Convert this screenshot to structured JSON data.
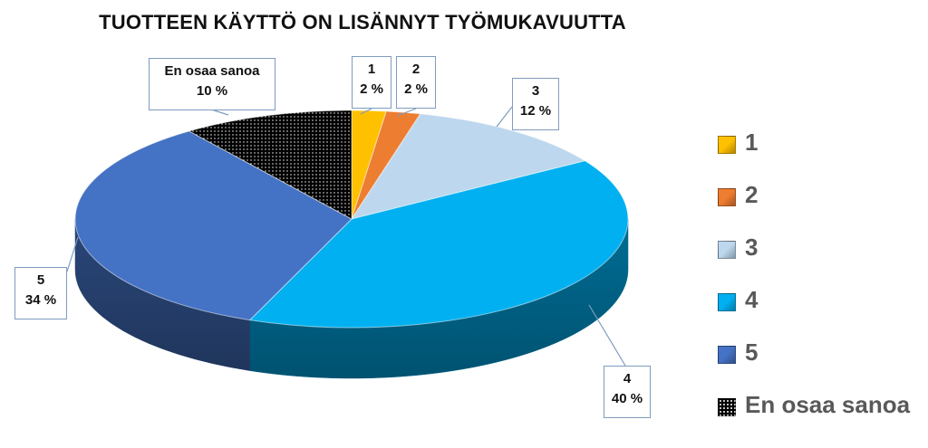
{
  "chart_data": {
    "type": "pie",
    "title": "TUOTTEEN KÄYTTÖ ON LISÄNNYT TYÖMUKAVUUTTA",
    "slices": [
      {
        "label": "1",
        "value": 2,
        "value_label": "2 %",
        "color": "#FFC000"
      },
      {
        "label": "2",
        "value": 2,
        "value_label": "2 %",
        "color": "#ED7D31"
      },
      {
        "label": "3",
        "value": 12,
        "value_label": "12 %",
        "color": "#BDD7EE"
      },
      {
        "label": "4",
        "value": 40,
        "value_label": "40 %",
        "color": "#00B0F0"
      },
      {
        "label": "5",
        "value": 34,
        "value_label": "34 %",
        "color": "#4472C4"
      },
      {
        "label": "En osaa sanoa",
        "value": 10,
        "value_label": "10 %",
        "color": "#000000",
        "pattern": "dotted"
      }
    ],
    "legend_position": "right",
    "three_d": true
  }
}
